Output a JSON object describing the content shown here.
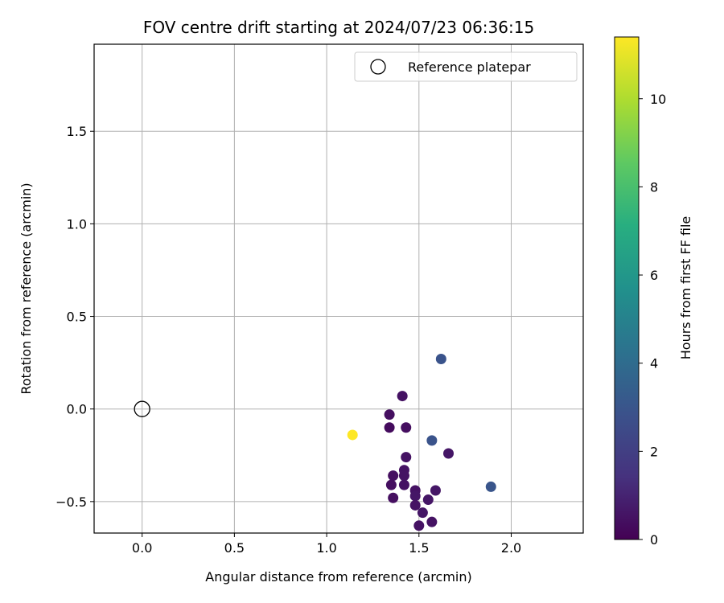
{
  "chart_data": {
    "type": "scatter",
    "title": "FOV centre drift starting at 2024/07/23 06:36:15",
    "xlabel": "Angular distance from reference (arcmin)",
    "ylabel": "Rotation from reference (arcmin)",
    "xlim": [
      -0.26,
      2.39
    ],
    "ylim": [
      -0.67,
      1.97
    ],
    "xticks": [
      0.0,
      0.5,
      1.0,
      1.5,
      2.0
    ],
    "xtick_labels": [
      "0.0",
      "0.5",
      "1.0",
      "1.5",
      "2.0"
    ],
    "yticks": [
      -0.5,
      0.0,
      0.5,
      1.0,
      1.5
    ],
    "ytick_labels": [
      "−0.5",
      "0.0",
      "0.5",
      "1.0",
      "1.5"
    ],
    "grid": true,
    "legend": {
      "location": "top-right",
      "entries": [
        "Reference platepar"
      ]
    },
    "reference_point": {
      "name": "Reference platepar",
      "x": 0.0,
      "y": 0.0
    },
    "colorbar": {
      "label": "Hours from first FF file",
      "range": [
        0,
        11.4
      ],
      "ticks": [
        0,
        2,
        4,
        6,
        8,
        10
      ],
      "tick_labels": [
        "0",
        "2",
        "4",
        "6",
        "8",
        "10"
      ],
      "colormap": "viridis"
    },
    "points": [
      {
        "x": 1.41,
        "y": 0.07,
        "c": 0.5
      },
      {
        "x": 1.34,
        "y": -0.03,
        "c": 0.4
      },
      {
        "x": 1.34,
        "y": -0.1,
        "c": 0.3
      },
      {
        "x": 1.43,
        "y": -0.1,
        "c": 0.4
      },
      {
        "x": 1.43,
        "y": -0.26,
        "c": 0.5
      },
      {
        "x": 1.42,
        "y": -0.33,
        "c": 0.5
      },
      {
        "x": 1.36,
        "y": -0.36,
        "c": 0.4
      },
      {
        "x": 1.42,
        "y": -0.36,
        "c": 0.5
      },
      {
        "x": 1.35,
        "y": -0.41,
        "c": 0.4
      },
      {
        "x": 1.42,
        "y": -0.41,
        "c": 0.5
      },
      {
        "x": 1.48,
        "y": -0.44,
        "c": 0.5
      },
      {
        "x": 1.36,
        "y": -0.48,
        "c": 0.4
      },
      {
        "x": 1.48,
        "y": -0.47,
        "c": 0.6
      },
      {
        "x": 1.55,
        "y": -0.49,
        "c": 0.6
      },
      {
        "x": 1.48,
        "y": -0.52,
        "c": 0.5
      },
      {
        "x": 1.52,
        "y": -0.56,
        "c": 0.6
      },
      {
        "x": 1.57,
        "y": -0.61,
        "c": 0.5
      },
      {
        "x": 1.5,
        "y": -0.63,
        "c": 0.5
      },
      {
        "x": 1.59,
        "y": -0.44,
        "c": 0.6
      },
      {
        "x": 1.66,
        "y": -0.24,
        "c": 0.6
      },
      {
        "x": 1.62,
        "y": 0.27,
        "c": 2.9
      },
      {
        "x": 1.57,
        "y": -0.17,
        "c": 2.9
      },
      {
        "x": 1.89,
        "y": -0.42,
        "c": 3.0
      },
      {
        "x": 1.14,
        "y": -0.14,
        "c": 11.4
      }
    ]
  }
}
